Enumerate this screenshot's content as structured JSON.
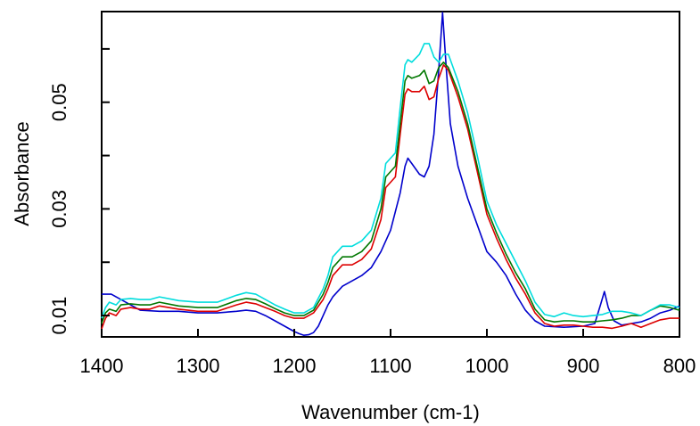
{
  "chart_data": {
    "type": "line",
    "title": "",
    "xlabel": "Wavenumber (cm-1)",
    "ylabel": "Absorbance",
    "xlim": [
      1400,
      800
    ],
    "ylim": [
      0.006,
      0.067
    ],
    "x_reversed": true,
    "grid": false,
    "legend": "none",
    "xticks": [
      {
        "value": 1400,
        "label": "1400"
      },
      {
        "value": 1300,
        "label": "1300"
      },
      {
        "value": 1200,
        "label": "1200"
      },
      {
        "value": 1100,
        "label": "1100"
      },
      {
        "value": 1000,
        "label": "1000"
      },
      {
        "value": 900,
        "label": "900"
      },
      {
        "value": 800,
        "label": "800"
      }
    ],
    "yticks": [
      {
        "value": 0.01,
        "label": "0.01"
      },
      {
        "value": 0.02,
        "label": ""
      },
      {
        "value": 0.03,
        "label": "0.03"
      },
      {
        "value": 0.04,
        "label": ""
      },
      {
        "value": 0.05,
        "label": "0.05"
      },
      {
        "value": 0.06,
        "label": ""
      }
    ],
    "series": [
      {
        "color": "#0000cc",
        "points": [
          [
            1400,
            0.014
          ],
          [
            1390,
            0.014
          ],
          [
            1380,
            0.013
          ],
          [
            1370,
            0.012
          ],
          [
            1360,
            0.011
          ],
          [
            1340,
            0.0108
          ],
          [
            1320,
            0.0108
          ],
          [
            1300,
            0.0105
          ],
          [
            1280,
            0.0105
          ],
          [
            1260,
            0.0108
          ],
          [
            1250,
            0.011
          ],
          [
            1240,
            0.0108
          ],
          [
            1230,
            0.01
          ],
          [
            1220,
            0.009
          ],
          [
            1210,
            0.008
          ],
          [
            1200,
            0.007
          ],
          [
            1195,
            0.0066
          ],
          [
            1190,
            0.0063
          ],
          [
            1185,
            0.0064
          ],
          [
            1180,
            0.0068
          ],
          [
            1175,
            0.008
          ],
          [
            1170,
            0.01
          ],
          [
            1165,
            0.012
          ],
          [
            1160,
            0.0135
          ],
          [
            1150,
            0.0155
          ],
          [
            1140,
            0.0165
          ],
          [
            1130,
            0.0175
          ],
          [
            1120,
            0.019
          ],
          [
            1110,
            0.022
          ],
          [
            1100,
            0.026
          ],
          [
            1090,
            0.033
          ],
          [
            1085,
            0.038
          ],
          [
            1082,
            0.0395
          ],
          [
            1078,
            0.0385
          ],
          [
            1070,
            0.0365
          ],
          [
            1065,
            0.036
          ],
          [
            1060,
            0.038
          ],
          [
            1055,
            0.044
          ],
          [
            1050,
            0.056
          ],
          [
            1046,
            0.0675
          ],
          [
            1042,
            0.056
          ],
          [
            1038,
            0.046
          ],
          [
            1030,
            0.038
          ],
          [
            1020,
            0.032
          ],
          [
            1010,
            0.027
          ],
          [
            1000,
            0.022
          ],
          [
            990,
            0.02
          ],
          [
            980,
            0.0175
          ],
          [
            970,
            0.014
          ],
          [
            960,
            0.011
          ],
          [
            950,
            0.009
          ],
          [
            940,
            0.008
          ],
          [
            920,
            0.0078
          ],
          [
            900,
            0.008
          ],
          [
            888,
            0.0085
          ],
          [
            882,
            0.012
          ],
          [
            878,
            0.0145
          ],
          [
            874,
            0.0115
          ],
          [
            868,
            0.009
          ],
          [
            860,
            0.0082
          ],
          [
            850,
            0.0085
          ],
          [
            840,
            0.0088
          ],
          [
            830,
            0.0095
          ],
          [
            820,
            0.0105
          ],
          [
            810,
            0.011
          ],
          [
            800,
            0.0118
          ]
        ]
      },
      {
        "color": "#dd0000",
        "points": [
          [
            1400,
            0.0075
          ],
          [
            1396,
            0.0095
          ],
          [
            1392,
            0.0105
          ],
          [
            1385,
            0.01
          ],
          [
            1380,
            0.0112
          ],
          [
            1370,
            0.0115
          ],
          [
            1360,
            0.0112
          ],
          [
            1350,
            0.0112
          ],
          [
            1340,
            0.0118
          ],
          [
            1320,
            0.0112
          ],
          [
            1300,
            0.0108
          ],
          [
            1280,
            0.0108
          ],
          [
            1260,
            0.012
          ],
          [
            1250,
            0.0125
          ],
          [
            1240,
            0.0122
          ],
          [
            1230,
            0.0115
          ],
          [
            1220,
            0.0108
          ],
          [
            1210,
            0.01
          ],
          [
            1200,
            0.0095
          ],
          [
            1190,
            0.0095
          ],
          [
            1180,
            0.0105
          ],
          [
            1170,
            0.013
          ],
          [
            1165,
            0.015
          ],
          [
            1160,
            0.0175
          ],
          [
            1150,
            0.0195
          ],
          [
            1140,
            0.0195
          ],
          [
            1130,
            0.0205
          ],
          [
            1120,
            0.0225
          ],
          [
            1110,
            0.028
          ],
          [
            1105,
            0.034
          ],
          [
            1100,
            0.035
          ],
          [
            1095,
            0.036
          ],
          [
            1090,
            0.044
          ],
          [
            1085,
            0.0515
          ],
          [
            1082,
            0.0525
          ],
          [
            1078,
            0.052
          ],
          [
            1070,
            0.052
          ],
          [
            1065,
            0.053
          ],
          [
            1060,
            0.0505
          ],
          [
            1055,
            0.051
          ],
          [
            1050,
            0.0545
          ],
          [
            1045,
            0.057
          ],
          [
            1040,
            0.056
          ],
          [
            1030,
            0.051
          ],
          [
            1020,
            0.045
          ],
          [
            1010,
            0.037
          ],
          [
            1000,
            0.029
          ],
          [
            990,
            0.0245
          ],
          [
            980,
            0.0205
          ],
          [
            970,
            0.017
          ],
          [
            960,
            0.014
          ],
          [
            950,
            0.0105
          ],
          [
            940,
            0.0085
          ],
          [
            930,
            0.008
          ],
          [
            920,
            0.0082
          ],
          [
            910,
            0.0082
          ],
          [
            900,
            0.008
          ],
          [
            890,
            0.0078
          ],
          [
            880,
            0.0078
          ],
          [
            870,
            0.0076
          ],
          [
            860,
            0.008
          ],
          [
            850,
            0.0085
          ],
          [
            840,
            0.0078
          ],
          [
            830,
            0.0085
          ],
          [
            820,
            0.0092
          ],
          [
            810,
            0.0095
          ],
          [
            800,
            0.0095
          ]
        ]
      },
      {
        "color": "#007700",
        "points": [
          [
            1400,
            0.0085
          ],
          [
            1396,
            0.0105
          ],
          [
            1392,
            0.0112
          ],
          [
            1385,
            0.0108
          ],
          [
            1380,
            0.012
          ],
          [
            1370,
            0.0122
          ],
          [
            1360,
            0.012
          ],
          [
            1350,
            0.012
          ],
          [
            1340,
            0.0125
          ],
          [
            1320,
            0.0118
          ],
          [
            1300,
            0.0115
          ],
          [
            1280,
            0.0115
          ],
          [
            1260,
            0.0128
          ],
          [
            1250,
            0.0132
          ],
          [
            1240,
            0.013
          ],
          [
            1230,
            0.0122
          ],
          [
            1220,
            0.0113
          ],
          [
            1210,
            0.0105
          ],
          [
            1200,
            0.01
          ],
          [
            1190,
            0.01
          ],
          [
            1180,
            0.011
          ],
          [
            1170,
            0.014
          ],
          [
            1165,
            0.0162
          ],
          [
            1160,
            0.019
          ],
          [
            1150,
            0.021
          ],
          [
            1140,
            0.021
          ],
          [
            1130,
            0.022
          ],
          [
            1120,
            0.024
          ],
          [
            1110,
            0.03
          ],
          [
            1105,
            0.036
          ],
          [
            1100,
            0.037
          ],
          [
            1095,
            0.038
          ],
          [
            1090,
            0.046
          ],
          [
            1085,
            0.054
          ],
          [
            1082,
            0.055
          ],
          [
            1078,
            0.0545
          ],
          [
            1070,
            0.055
          ],
          [
            1065,
            0.056
          ],
          [
            1060,
            0.0535
          ],
          [
            1055,
            0.054
          ],
          [
            1050,
            0.0565
          ],
          [
            1045,
            0.0575
          ],
          [
            1040,
            0.0565
          ],
          [
            1030,
            0.052
          ],
          [
            1020,
            0.046
          ],
          [
            1010,
            0.038
          ],
          [
            1000,
            0.03
          ],
          [
            990,
            0.0255
          ],
          [
            980,
            0.0215
          ],
          [
            970,
            0.018
          ],
          [
            960,
            0.015
          ],
          [
            950,
            0.0112
          ],
          [
            940,
            0.0092
          ],
          [
            930,
            0.0088
          ],
          [
            920,
            0.009
          ],
          [
            910,
            0.009
          ],
          [
            900,
            0.0088
          ],
          [
            890,
            0.0088
          ],
          [
            880,
            0.009
          ],
          [
            870,
            0.0092
          ],
          [
            860,
            0.0095
          ],
          [
            850,
            0.01
          ],
          [
            840,
            0.01
          ],
          [
            830,
            0.011
          ],
          [
            820,
            0.0118
          ],
          [
            810,
            0.0115
          ],
          [
            800,
            0.011
          ]
        ]
      },
      {
        "color": "#00dddd",
        "points": [
          [
            1400,
            0.0095
          ],
          [
            1396,
            0.0115
          ],
          [
            1392,
            0.0125
          ],
          [
            1385,
            0.012
          ],
          [
            1380,
            0.013
          ],
          [
            1370,
            0.0132
          ],
          [
            1360,
            0.013
          ],
          [
            1350,
            0.013
          ],
          [
            1340,
            0.0135
          ],
          [
            1320,
            0.0128
          ],
          [
            1300,
            0.0125
          ],
          [
            1280,
            0.0125
          ],
          [
            1260,
            0.0138
          ],
          [
            1250,
            0.0143
          ],
          [
            1240,
            0.014
          ],
          [
            1230,
            0.013
          ],
          [
            1220,
            0.012
          ],
          [
            1210,
            0.0112
          ],
          [
            1200,
            0.0105
          ],
          [
            1190,
            0.0105
          ],
          [
            1180,
            0.0115
          ],
          [
            1170,
            0.015
          ],
          [
            1165,
            0.0175
          ],
          [
            1160,
            0.021
          ],
          [
            1150,
            0.023
          ],
          [
            1140,
            0.023
          ],
          [
            1130,
            0.024
          ],
          [
            1120,
            0.026
          ],
          [
            1110,
            0.032
          ],
          [
            1105,
            0.0385
          ],
          [
            1100,
            0.0395
          ],
          [
            1095,
            0.0405
          ],
          [
            1090,
            0.049
          ],
          [
            1085,
            0.057
          ],
          [
            1082,
            0.058
          ],
          [
            1078,
            0.0575
          ],
          [
            1070,
            0.059
          ],
          [
            1065,
            0.061
          ],
          [
            1060,
            0.061
          ],
          [
            1055,
            0.0585
          ],
          [
            1050,
            0.0575
          ],
          [
            1045,
            0.059
          ],
          [
            1040,
            0.059
          ],
          [
            1030,
            0.054
          ],
          [
            1020,
            0.048
          ],
          [
            1010,
            0.04
          ],
          [
            1000,
            0.0315
          ],
          [
            990,
            0.027
          ],
          [
            980,
            0.0235
          ],
          [
            970,
            0.02
          ],
          [
            960,
            0.0165
          ],
          [
            950,
            0.0125
          ],
          [
            940,
            0.0102
          ],
          [
            930,
            0.0098
          ],
          [
            920,
            0.0105
          ],
          [
            910,
            0.01
          ],
          [
            900,
            0.0098
          ],
          [
            890,
            0.01
          ],
          [
            880,
            0.0102
          ],
          [
            870,
            0.0108
          ],
          [
            860,
            0.0108
          ],
          [
            850,
            0.0105
          ],
          [
            840,
            0.01
          ],
          [
            830,
            0.011
          ],
          [
            820,
            0.012
          ],
          [
            810,
            0.012
          ],
          [
            800,
            0.0115
          ]
        ]
      }
    ]
  }
}
